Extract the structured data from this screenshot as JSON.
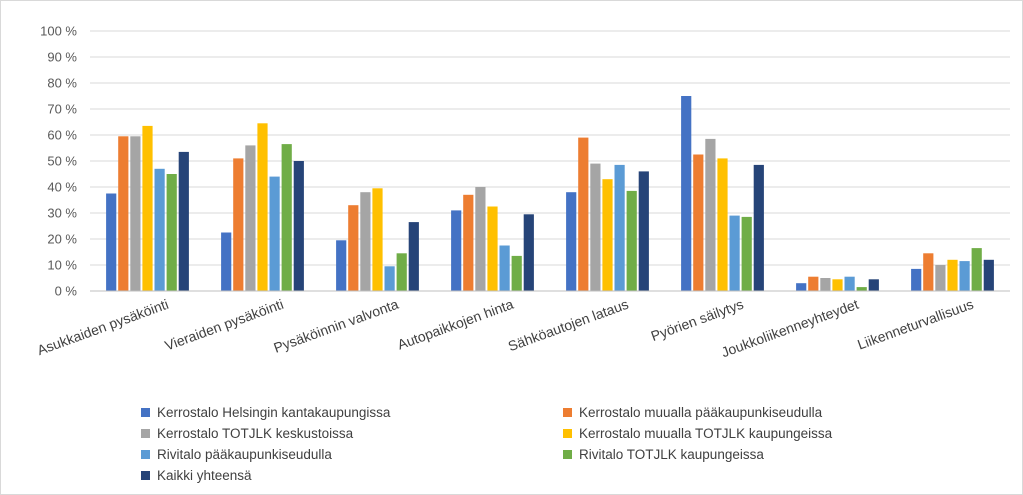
{
  "chart_data": {
    "type": "bar",
    "title": "",
    "xlabel": "",
    "ylabel": "",
    "ylim": [
      0,
      100
    ],
    "y_ticks": [
      "0 %",
      "10 %",
      "20 %",
      "30 %",
      "40 %",
      "50 %",
      "60 %",
      "70 %",
      "80 %",
      "90 %",
      "100 %"
    ],
    "grid": true,
    "legend_position": "bottom",
    "categories": [
      "Asukkaiden pysäköinti",
      "Vieraiden pysäköinti",
      "Pysäköinnin valvonta",
      "Autopaikkojen hinta",
      "Sähköautojen lataus",
      "Pyörien säilytys",
      "Joukkoliikenneyhteydet",
      "Liikenneturvallisuus"
    ],
    "series": [
      {
        "name": "Kerrostalo Helsingin kantakaupungissa",
        "color": "#4472c4",
        "values": [
          37.5,
          22.5,
          19.5,
          31,
          38,
          75,
          3,
          8.5
        ]
      },
      {
        "name": "Kerrostalo muualla pääkaupunkiseudulla",
        "color": "#ed7d31",
        "values": [
          59.5,
          51,
          33,
          37,
          59,
          52.5,
          5.5,
          14.5
        ]
      },
      {
        "name": "Kerrostalo TOTJLK keskustoissa",
        "color": "#a5a5a5",
        "values": [
          59.5,
          56,
          38,
          40,
          49,
          58.5,
          5,
          10
        ]
      },
      {
        "name": "Kerrostalo muualla TOTJLK kaupungeissa",
        "color": "#ffc000",
        "values": [
          63.5,
          64.5,
          39.5,
          32.5,
          43,
          51,
          4.5,
          12
        ]
      },
      {
        "name": "Rivitalo pääkaupunkiseudulla",
        "color": "#5b9bd5",
        "values": [
          47,
          44,
          9.5,
          17.5,
          48.5,
          29,
          5.5,
          11.5
        ]
      },
      {
        "name": "Rivitalo TOTJLK kaupungeissa",
        "color": "#70ad47",
        "values": [
          45,
          56.5,
          14.5,
          13.5,
          38.5,
          28.5,
          1.5,
          16.5
        ]
      },
      {
        "name": "Kaikki yhteensä",
        "color": "#264478",
        "values": [
          53.5,
          50,
          26.5,
          29.5,
          46,
          48.5,
          4.5,
          12
        ]
      }
    ]
  }
}
